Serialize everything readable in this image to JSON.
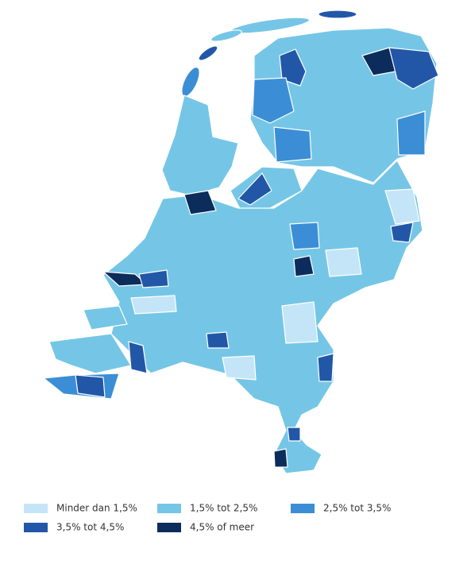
{
  "legend": {
    "items": [
      {
        "label": "Minder dan 1,5%",
        "color": "#c4e5f7"
      },
      {
        "label": "1,5% tot 2,5%",
        "color": "#75c6e6"
      },
      {
        "label": "2,5% tot 3,5%",
        "color": "#3b8ed5"
      },
      {
        "label": "3,5% tot 4,5%",
        "color": "#2257a8"
      },
      {
        "label": "4,5% of meer",
        "color": "#0c2c5c"
      }
    ]
  }
}
